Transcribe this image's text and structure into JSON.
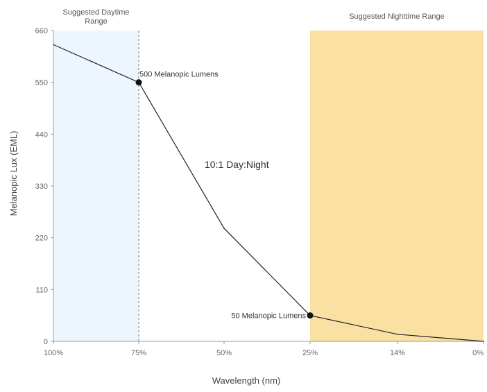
{
  "chart_data": {
    "type": "line",
    "title": "",
    "xlabel": "Wavelength (nm)",
    "ylabel": "Melanopic Lux (EML)",
    "categories": [
      "100%",
      "75%",
      "50%",
      "25%",
      "14%",
      "0%"
    ],
    "yticks": [
      0,
      110,
      220,
      330,
      440,
      550,
      660
    ],
    "ylim": [
      0,
      660
    ],
    "grid": false,
    "legend": "none",
    "series": [
      {
        "values": [
          630,
          550,
          240,
          55,
          15,
          0
        ]
      }
    ],
    "markers": [
      {
        "category": "75%",
        "value": 550,
        "label": "500 Melanopic Lumens"
      },
      {
        "category": "25%",
        "value": 55,
        "label": "50 Melanopic Lumens"
      }
    ],
    "bands": [
      {
        "from": "100%",
        "to": "75%",
        "label_line1": "Suggested Daytime",
        "label_line2": "Range",
        "color": "#eef6fd"
      },
      {
        "from": "25%",
        "to": "0%",
        "label_line1": "Suggested Nighttime Range",
        "label_line2": "",
        "color": "#fbe0a3"
      }
    ],
    "annotation": "10:1 Day:Night",
    "colors": {
      "line": "#222222",
      "marker": "#111111",
      "axis": "#999999"
    }
  }
}
